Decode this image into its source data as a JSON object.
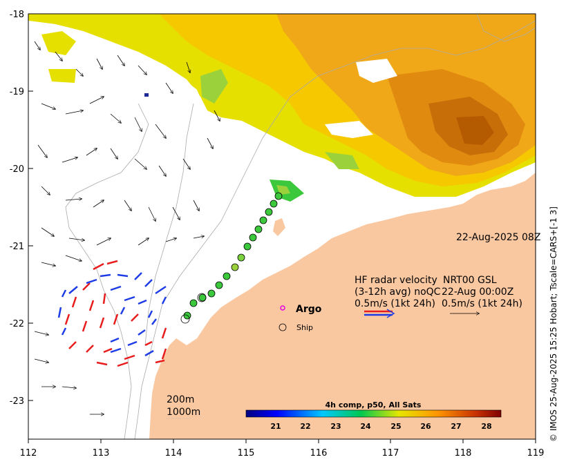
{
  "date_label": "22-Aug-2025 08Z",
  "credit": "© IMOS 25-Aug-2025 15:25 Hobart; Tscale=CARS+[-1 3]",
  "axes": {
    "lon_ticks": [
      "112",
      "113",
      "114",
      "115",
      "116",
      "117",
      "118",
      "119"
    ],
    "lat_ticks": [
      "-18",
      "-19",
      "-20",
      "-21",
      "-22",
      "-23"
    ]
  },
  "legend": {
    "hf_title": "HF radar velocity",
    "hf_avg": "(3-12h avg) noQC",
    "hf_scale": "0.5m/s (1kt 24h)",
    "nrt_title": "NRT00 GSL",
    "nrt_date": "22-Aug 00:00Z",
    "nrt_scale": "0.5m/s (1kt 24h)",
    "argo": "Argo",
    "ship": "Ship",
    "depth_200": "200m",
    "depth_1000": "1000m"
  },
  "colorbar": {
    "title": "4h comp, p50, All Sats",
    "ticks": [
      "21",
      "22",
      "23",
      "24",
      "25",
      "26",
      "27",
      "28"
    ],
    "range": [
      20.3,
      28.5
    ]
  },
  "colors": {
    "land": "#FAC8A0",
    "hf_east": "#E81C1C",
    "hf_west": "#1E3CE6",
    "ship_fill": "#3CC83C"
  }
}
